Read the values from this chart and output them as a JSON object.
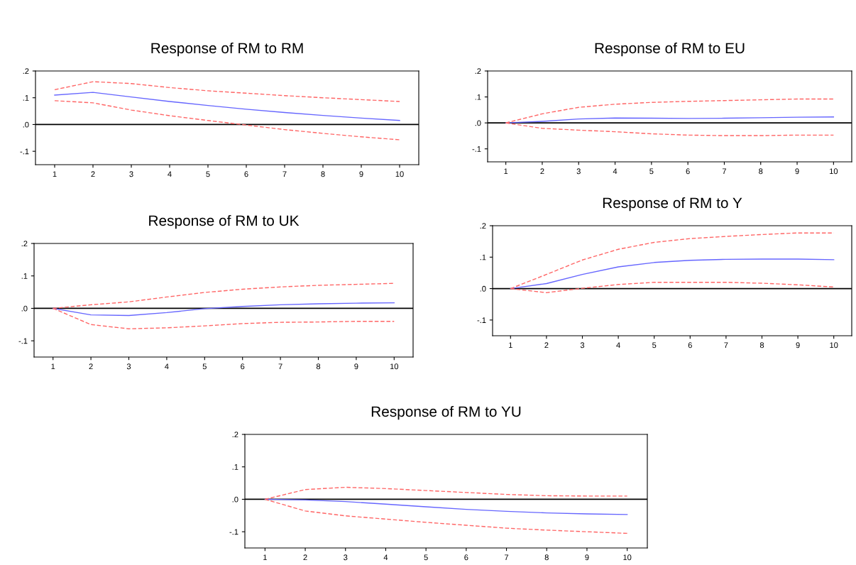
{
  "chart_data": [
    {
      "type": "line",
      "title": "Response of RM to RM",
      "x": [
        1,
        2,
        3,
        4,
        5,
        6,
        7,
        8,
        9,
        10
      ],
      "xlim": [
        0.5,
        10.5
      ],
      "xticks": [
        1,
        2,
        3,
        4,
        5,
        6,
        7,
        8,
        9,
        10
      ],
      "ylim": [
        -0.15,
        0.2
      ],
      "yticks": [
        {
          "value": -0.1,
          "label": "-.1"
        },
        {
          "value": 0,
          "label": ".0"
        },
        {
          "value": 0.1,
          "label": ".1"
        },
        {
          "value": 0.2,
          "label": ".2"
        }
      ],
      "grid": false,
      "legend": false,
      "ref_lines": [
        {
          "axis": "y",
          "value": 0,
          "color": "#000000"
        }
      ],
      "series": [
        {
          "color": "#6666ff",
          "line_style": "solid",
          "values": [
            0.11,
            0.12,
            0.103,
            0.086,
            0.071,
            0.057,
            0.045,
            0.034,
            0.024,
            0.015
          ]
        },
        {
          "color": "#ff6666",
          "line_style": "dashed",
          "values": [
            0.13,
            0.16,
            0.153,
            0.138,
            0.126,
            0.117,
            0.108,
            0.1,
            0.093,
            0.086
          ]
        },
        {
          "color": "#ff6666",
          "line_style": "dashed",
          "values": [
            0.089,
            0.081,
            0.054,
            0.033,
            0.015,
            -0.002,
            -0.019,
            -0.033,
            -0.046,
            -0.057
          ]
        }
      ]
    },
    {
      "type": "line",
      "title": "Response of RM to EU",
      "x": [
        1,
        2,
        3,
        4,
        5,
        6,
        7,
        8,
        9,
        10
      ],
      "xlim": [
        0.5,
        10.5
      ],
      "xticks": [
        1,
        2,
        3,
        4,
        5,
        6,
        7,
        8,
        9,
        10
      ],
      "ylim": [
        -0.15,
        0.2
      ],
      "yticks": [
        {
          "value": -0.1,
          "label": "-.1"
        },
        {
          "value": 0,
          "label": ".0"
        },
        {
          "value": 0.1,
          "label": ".1"
        },
        {
          "value": 0.2,
          "label": ".2"
        }
      ],
      "grid": false,
      "legend": false,
      "ref_lines": [
        {
          "axis": "y",
          "value": 0,
          "color": "#000000"
        }
      ],
      "series": [
        {
          "color": "#6666ff",
          "line_style": "solid",
          "values": [
            0,
            0.006,
            0.015,
            0.019,
            0.018,
            0.017,
            0.018,
            0.02,
            0.022,
            0.023
          ]
        },
        {
          "color": "#ff6666",
          "line_style": "dashed",
          "values": [
            0,
            0.035,
            0.06,
            0.072,
            0.079,
            0.083,
            0.086,
            0.089,
            0.092,
            0.092
          ]
        },
        {
          "color": "#ff6666",
          "line_style": "dashed",
          "values": [
            0,
            -0.021,
            -0.028,
            -0.034,
            -0.042,
            -0.047,
            -0.049,
            -0.049,
            -0.047,
            -0.047
          ]
        }
      ]
    },
    {
      "type": "line",
      "title": "Response of RM to UK",
      "x": [
        1,
        2,
        3,
        4,
        5,
        6,
        7,
        8,
        9,
        10
      ],
      "xlim": [
        0.5,
        10.5
      ],
      "xticks": [
        1,
        2,
        3,
        4,
        5,
        6,
        7,
        8,
        9,
        10
      ],
      "ylim": [
        -0.15,
        0.2
      ],
      "yticks": [
        {
          "value": -0.1,
          "label": "-.1"
        },
        {
          "value": 0,
          "label": ".0"
        },
        {
          "value": 0.1,
          "label": ".1"
        },
        {
          "value": 0.2,
          "label": ".2"
        }
      ],
      "grid": false,
      "legend": false,
      "ref_lines": [
        {
          "axis": "y",
          "value": 0,
          "color": "#000000"
        }
      ],
      "series": [
        {
          "color": "#6666ff",
          "line_style": "solid",
          "values": [
            0,
            -0.02,
            -0.022,
            -0.013,
            -0.001,
            0.006,
            0.011,
            0.014,
            0.016,
            0.017
          ]
        },
        {
          "color": "#ff6666",
          "line_style": "dashed",
          "values": [
            0,
            0.011,
            0.02,
            0.035,
            0.049,
            0.059,
            0.066,
            0.071,
            0.074,
            0.077
          ]
        },
        {
          "color": "#ff6666",
          "line_style": "dashed",
          "values": [
            0,
            -0.05,
            -0.063,
            -0.06,
            -0.054,
            -0.047,
            -0.043,
            -0.042,
            -0.04,
            -0.04
          ]
        }
      ]
    },
    {
      "type": "line",
      "title": "Response of RM to Y",
      "x": [
        1,
        2,
        3,
        4,
        5,
        6,
        7,
        8,
        9,
        10
      ],
      "xlim": [
        0.5,
        10.5
      ],
      "xticks": [
        1,
        2,
        3,
        4,
        5,
        6,
        7,
        8,
        9,
        10
      ],
      "ylim": [
        -0.15,
        0.2
      ],
      "yticks": [
        {
          "value": -0.1,
          "label": "-.1"
        },
        {
          "value": 0,
          "label": ".0"
        },
        {
          "value": 0.1,
          "label": ".1"
        },
        {
          "value": 0.2,
          "label": ".2"
        }
      ],
      "grid": false,
      "legend": false,
      "ref_lines": [
        {
          "axis": "y",
          "value": 0,
          "color": "#000000"
        }
      ],
      "series": [
        {
          "color": "#6666ff",
          "line_style": "solid",
          "values": [
            0,
            0.016,
            0.045,
            0.069,
            0.083,
            0.09,
            0.093,
            0.094,
            0.094,
            0.092
          ]
        },
        {
          "color": "#ff6666",
          "line_style": "dashed",
          "values": [
            0,
            0.045,
            0.091,
            0.125,
            0.147,
            0.159,
            0.166,
            0.172,
            0.177,
            0.177
          ]
        },
        {
          "color": "#ff6666",
          "line_style": "dashed",
          "values": [
            0,
            -0.013,
            0.001,
            0.013,
            0.02,
            0.02,
            0.02,
            0.017,
            0.012,
            0.005
          ]
        }
      ]
    },
    {
      "type": "line",
      "title": "Response of RM to YU",
      "x": [
        1,
        2,
        3,
        4,
        5,
        6,
        7,
        8,
        9,
        10
      ],
      "xlim": [
        0.5,
        10.5
      ],
      "xticks": [
        1,
        2,
        3,
        4,
        5,
        6,
        7,
        8,
        9,
        10
      ],
      "ylim": [
        -0.15,
        0.2
      ],
      "yticks": [
        {
          "value": -0.1,
          "label": "-.1"
        },
        {
          "value": 0,
          "label": ".0"
        },
        {
          "value": 0.1,
          "label": ".1"
        },
        {
          "value": 0.2,
          "label": ".2"
        }
      ],
      "grid": false,
      "legend": false,
      "ref_lines": [
        {
          "axis": "y",
          "value": 0,
          "color": "#000000"
        }
      ],
      "series": [
        {
          "color": "#6666ff",
          "line_style": "solid",
          "values": [
            0,
            -0.002,
            -0.007,
            -0.015,
            -0.023,
            -0.031,
            -0.037,
            -0.042,
            -0.045,
            -0.047
          ]
        },
        {
          "color": "#ff6666",
          "line_style": "dashed",
          "values": [
            0,
            0.03,
            0.037,
            0.033,
            0.027,
            0.021,
            0.015,
            0.011,
            0.01,
            0.01
          ]
        },
        {
          "color": "#ff6666",
          "line_style": "dashed",
          "values": [
            0,
            -0.036,
            -0.051,
            -0.061,
            -0.071,
            -0.08,
            -0.089,
            -0.095,
            -0.1,
            -0.105
          ]
        }
      ]
    }
  ]
}
